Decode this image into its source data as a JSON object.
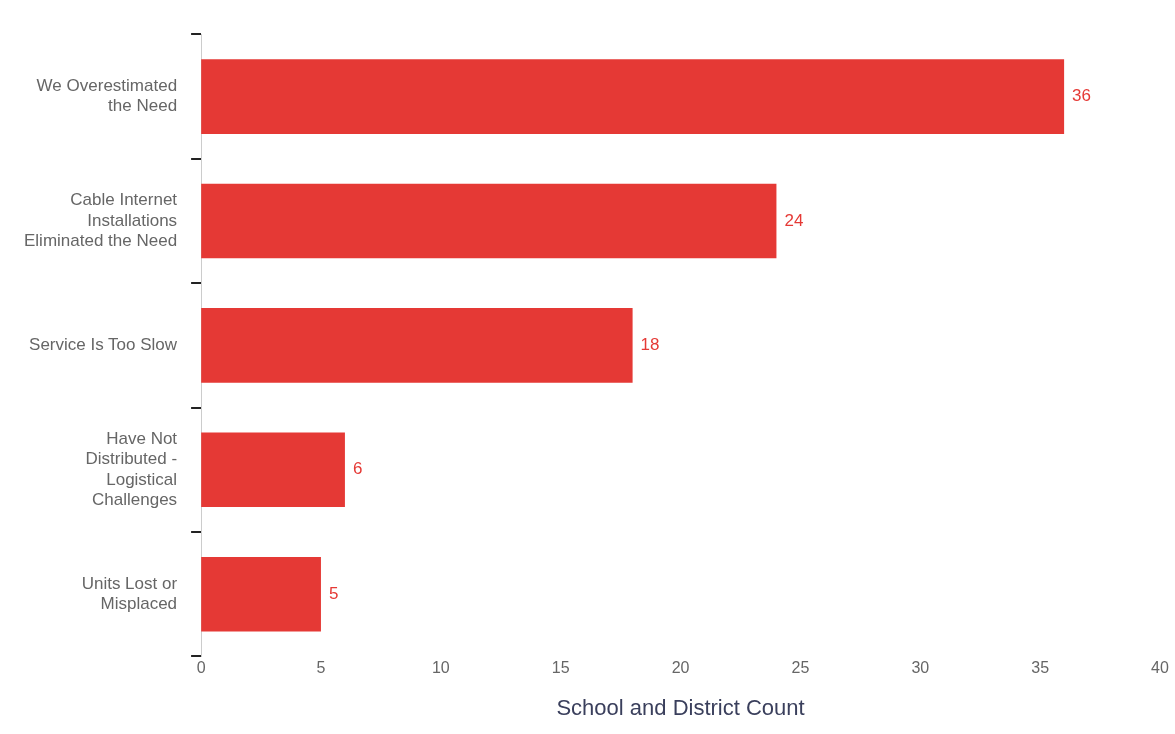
{
  "chart_data": {
    "type": "bar",
    "orientation": "horizontal",
    "xlabel": "School and District Count",
    "categories": [
      "We Overestimated the Need",
      "Cable Internet Installations Eliminated the Need",
      "Service Is Too Slow",
      "Have Not Distributed - Logistical Challenges",
      "Units Lost or Misplaced"
    ],
    "values": [
      36,
      24,
      18,
      6,
      5
    ],
    "color": "#e53935",
    "xlim": [
      0,
      40
    ],
    "xticks": [
      0,
      5,
      10,
      15,
      20,
      25,
      30,
      35,
      40
    ],
    "grid": false,
    "legend": false,
    "data_labels": true
  }
}
